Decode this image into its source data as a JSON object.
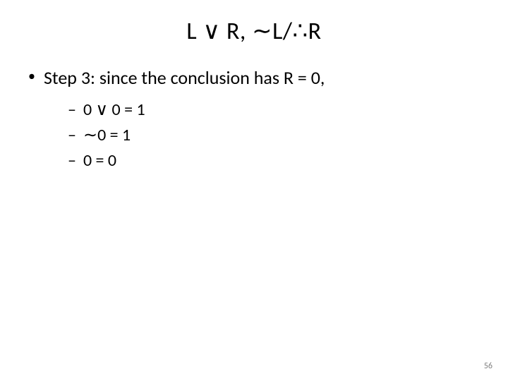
{
  "title": "L ∨ R, ∼L/∴R",
  "main_bullet": "Step 3: since the conclusion has R = 0,",
  "sub_bullets": [
    "0 ∨ 0 = 1",
    "∼0 = 1",
    "0 = 0"
  ],
  "page_number": "56",
  "colors": {
    "background": "#ffffff",
    "text": "#000000",
    "page_number": "#7f7f7f"
  }
}
